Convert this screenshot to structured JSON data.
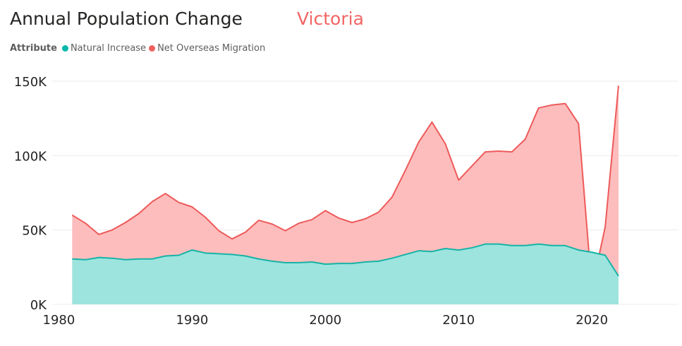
{
  "header": {
    "title": "Annual Population Change",
    "subtitle": "Victoria"
  },
  "legend": {
    "title": "Attribute",
    "items": [
      {
        "label": "Natural Increase",
        "color": "#01B8AA"
      },
      {
        "label": "Net Overseas Migration",
        "color": "#F2605E"
      }
    ]
  },
  "colors": {
    "natural_line": "#15B3A6",
    "natural_fill": "#9DE4DE",
    "migration_line": "#EE5A5A",
    "migration_fill": "#FDBDBD",
    "subtitle": "#F26565",
    "grid": "#ECECEC"
  },
  "chart_data": {
    "type": "area",
    "stacked": false,
    "x": [
      1981,
      1982,
      1983,
      1984,
      1985,
      1986,
      1987,
      1988,
      1989,
      1990,
      1991,
      1992,
      1993,
      1994,
      1995,
      1996,
      1997,
      1998,
      1999,
      2000,
      2001,
      2002,
      2003,
      2004,
      2005,
      2006,
      2007,
      2008,
      2009,
      2010,
      2011,
      2012,
      2013,
      2014,
      2015,
      2016,
      2017,
      2018,
      2019,
      2020,
      2021,
      2022
    ],
    "series": [
      {
        "name": "Net Overseas Migration",
        "values": [
          60000,
          54500,
          47000,
          50000,
          55000,
          61000,
          69000,
          74500,
          68500,
          65500,
          58500,
          49500,
          44000,
          48500,
          56500,
          54000,
          49500,
          54500,
          57000,
          63000,
          58000,
          55000,
          57500,
          62000,
          72000,
          90000,
          109000,
          122500,
          108000,
          83500,
          93000,
          102500,
          103000,
          102500,
          111000,
          132000,
          134000,
          135000,
          121500,
          10500,
          52000,
          147000
        ]
      },
      {
        "name": "Natural Increase",
        "values": [
          30500,
          30000,
          31500,
          31000,
          30000,
          30500,
          30500,
          32500,
          33000,
          36500,
          34500,
          34000,
          33500,
          32500,
          30500,
          29000,
          28000,
          28000,
          28500,
          27000,
          27500,
          27500,
          28500,
          29000,
          31000,
          33500,
          36000,
          35500,
          37500,
          36500,
          38000,
          40500,
          40500,
          39500,
          39500,
          40500,
          39500,
          39500,
          36500,
          35000,
          33000,
          19000
        ]
      }
    ],
    "xticks": [
      1980,
      1990,
      2000,
      2010,
      2020
    ],
    "xtick_labels": [
      "1980",
      "1990",
      "2000",
      "2010",
      "2020"
    ],
    "yticks": [
      0,
      50000,
      100000,
      150000
    ],
    "ytick_labels": [
      "0K",
      "50K",
      "100K",
      "150K"
    ],
    "xlim": [
      1979.5,
      2026.5
    ],
    "ylim": [
      0,
      150000
    ],
    "grid": true
  }
}
